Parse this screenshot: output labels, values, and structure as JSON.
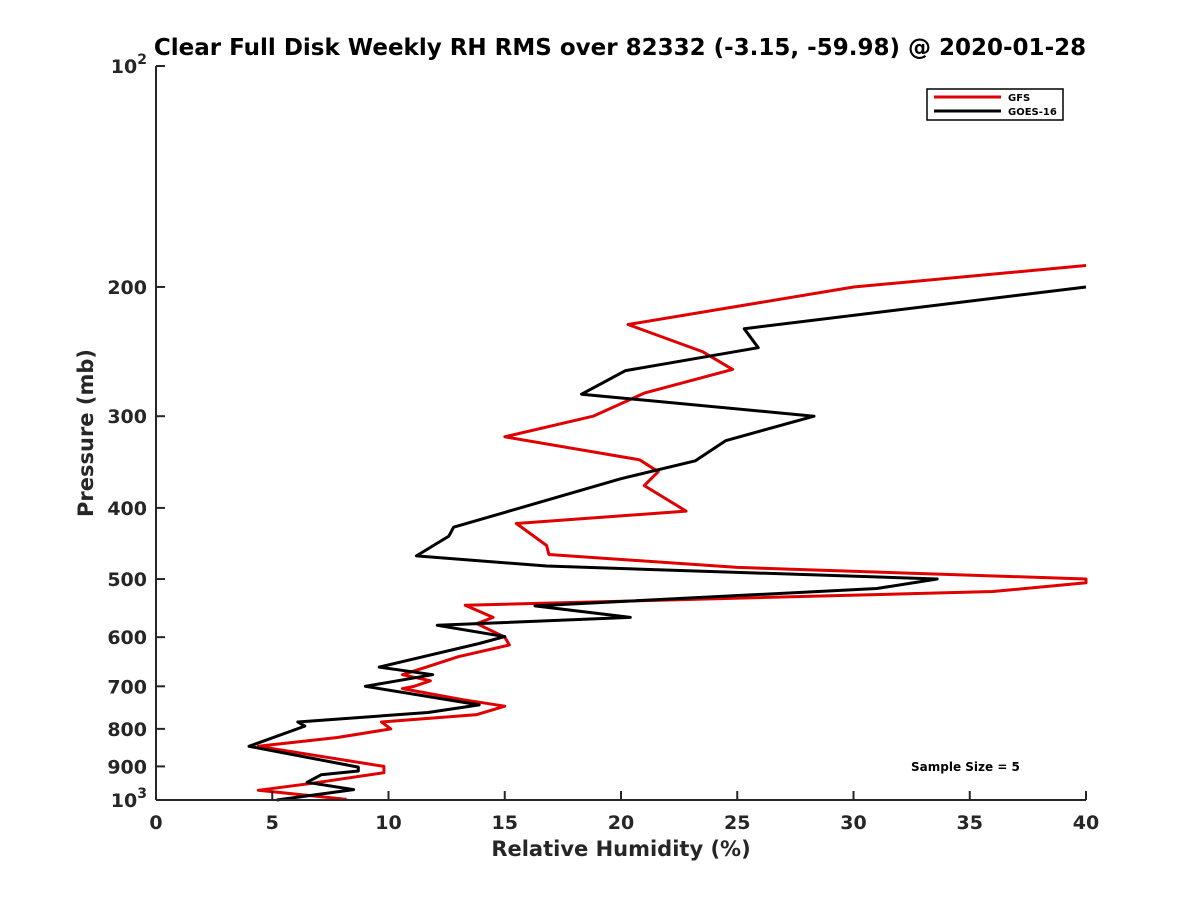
{
  "chart_data": {
    "type": "line",
    "title": "Clear Full Disk Weekly RH RMS over 82332 (-3.15, -59.98) @ 2020-01-28",
    "xlabel": "Relative Humidity (%)",
    "ylabel": "Pressure (mb)",
    "xlim": [
      0,
      40
    ],
    "ylim": [
      100,
      1000
    ],
    "y_scale": "log",
    "y_reversed": true,
    "x_ticks": [
      0,
      5,
      10,
      15,
      20,
      25,
      30,
      35,
      40
    ],
    "x_tick_labels": [
      "0",
      "5",
      "10",
      "15",
      "20",
      "25",
      "30",
      "35",
      "40"
    ],
    "y_ticks": [
      100,
      200,
      300,
      400,
      500,
      600,
      700,
      800,
      900,
      1000
    ],
    "y_tick_labels": [
      {
        "base": "10",
        "exp": "2"
      },
      {
        "base": "200",
        "exp": ""
      },
      {
        "base": "300",
        "exp": ""
      },
      {
        "base": "400",
        "exp": ""
      },
      {
        "base": "500",
        "exp": ""
      },
      {
        "base": "600",
        "exp": ""
      },
      {
        "base": "700",
        "exp": ""
      },
      {
        "base": "800",
        "exp": ""
      },
      {
        "base": "900",
        "exp": ""
      },
      {
        "base": "10",
        "exp": "3"
      }
    ],
    "grid": false,
    "legend_position": "top-right",
    "annotation": "Sample Size = 5",
    "series": [
      {
        "name": "GFS",
        "color": "#e00000",
        "points": [
          [
            40,
            187
          ],
          [
            30,
            200
          ],
          [
            20.3,
            225
          ],
          [
            23.5,
            245
          ],
          [
            24.8,
            259
          ],
          [
            21,
            279
          ],
          [
            18.8,
            300
          ],
          [
            15,
            320
          ],
          [
            20.8,
            344
          ],
          [
            21.6,
            357
          ],
          [
            21,
            373
          ],
          [
            22.8,
            404
          ],
          [
            15.5,
            420
          ],
          [
            16.8,
            450
          ],
          [
            16.9,
            463
          ],
          [
            25,
            482
          ],
          [
            40,
            500
          ],
          [
            40,
            506
          ],
          [
            36,
            520
          ],
          [
            13.3,
            543
          ],
          [
            14.5,
            564
          ],
          [
            13.8,
            575
          ],
          [
            15,
            600
          ],
          [
            15.2,
            615
          ],
          [
            13,
            638
          ],
          [
            11.7,
            658
          ],
          [
            10.6,
            675
          ],
          [
            11.8,
            688
          ],
          [
            11.1,
            700
          ],
          [
            10.6,
            705
          ],
          [
            13.2,
            730
          ],
          [
            15.0,
            745
          ],
          [
            13.8,
            765
          ],
          [
            9.7,
            783
          ],
          [
            10.1,
            800
          ],
          [
            7.8,
            822
          ],
          [
            4.4,
            845
          ],
          [
            9.8,
            900
          ],
          [
            9.8,
            918
          ],
          [
            6.7,
            949
          ],
          [
            4.4,
            970
          ],
          [
            8.2,
            998
          ]
        ]
      },
      {
        "name": "GOES-16",
        "color": "#000000",
        "points": [
          [
            40,
            200
          ],
          [
            25.3,
            228
          ],
          [
            25.9,
            242
          ],
          [
            20.2,
            260
          ],
          [
            18.3,
            280
          ],
          [
            28.3,
            300
          ],
          [
            24.5,
            324
          ],
          [
            23.2,
            345
          ],
          [
            20,
            365
          ],
          [
            12.8,
            425
          ],
          [
            12.6,
            437
          ],
          [
            11.2,
            465
          ],
          [
            16.8,
            480
          ],
          [
            33.6,
            500
          ],
          [
            31,
            515
          ],
          [
            16.3,
            544
          ],
          [
            20.4,
            564
          ],
          [
            12.1,
            578
          ],
          [
            15,
            599
          ],
          [
            13.9,
            612
          ],
          [
            11.4,
            639
          ],
          [
            9.6,
            659
          ],
          [
            11.9,
            675
          ],
          [
            9,
            700
          ],
          [
            13.9,
            742
          ],
          [
            11.7,
            760
          ],
          [
            6.1,
            783
          ],
          [
            6.4,
            793
          ],
          [
            4,
            845
          ],
          [
            8.7,
            902
          ],
          [
            8.7,
            913
          ],
          [
            7.1,
            924
          ],
          [
            6.5,
            946
          ],
          [
            8.5,
            968
          ],
          [
            5.2,
            1000
          ]
        ]
      }
    ]
  }
}
